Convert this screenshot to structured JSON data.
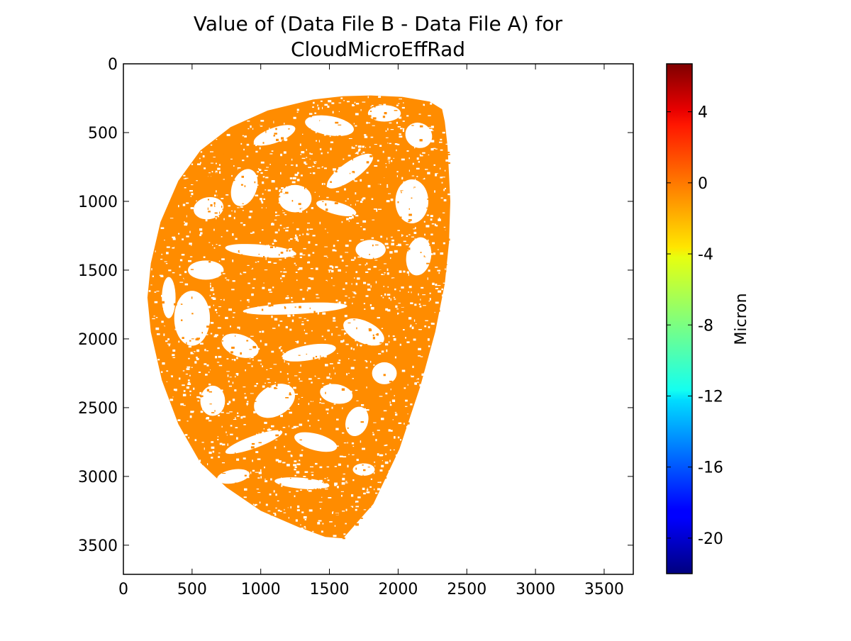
{
  "chart_data": {
    "type": "heatmap",
    "title_lines": [
      "Value of (Data File B - Data File A) for",
      "CloudMicroEffRad"
    ],
    "xlabel": "",
    "ylabel": "",
    "xlim": [
      0,
      3712
    ],
    "ylim": [
      3712,
      0
    ],
    "x_ticks": [
      0,
      500,
      1000,
      1500,
      2000,
      2500,
      3000,
      3500
    ],
    "y_ticks": [
      0,
      500,
      1000,
      1500,
      2000,
      2500,
      3000,
      3500
    ],
    "x_tick_labels": [
      "0",
      "500",
      "1000",
      "1500",
      "2000",
      "2500",
      "3000",
      "3500"
    ],
    "y_tick_labels": [
      "0",
      "500",
      "1000",
      "1500",
      "2000",
      "2500",
      "3000",
      "3500"
    ],
    "grid": false,
    "colormap": "jet",
    "colorbar": {
      "label": "Micron",
      "range": [
        -22,
        6.7
      ],
      "ticks": [
        4,
        0,
        -4,
        -8,
        -12,
        -16,
        -20
      ],
      "tick_labels": [
        "4",
        "0",
        "-4",
        "-8",
        "-12",
        "-16",
        "-20"
      ]
    },
    "field": {
      "description_value": 0,
      "fill_color": "#ff8c00",
      "no_data_color": "#ffffff",
      "disk_outline_data": [
        [
          1800,
          230
        ],
        [
          2030,
          240
        ],
        [
          2230,
          275
        ],
        [
          2320,
          330
        ],
        [
          2340,
          420
        ],
        [
          2360,
          600
        ],
        [
          2370,
          800
        ],
        [
          2380,
          1000
        ],
        [
          2370,
          1300
        ],
        [
          2340,
          1600
        ],
        [
          2270,
          1950
        ],
        [
          2160,
          2350
        ],
        [
          2010,
          2800
        ],
        [
          1820,
          3200
        ],
        [
          1600,
          3450
        ],
        [
          1470,
          3440
        ],
        [
          1280,
          3370
        ],
        [
          1000,
          3250
        ],
        [
          750,
          3080
        ],
        [
          560,
          2900
        ],
        [
          400,
          2620
        ],
        [
          280,
          2300
        ],
        [
          200,
          1950
        ],
        [
          175,
          1700
        ],
        [
          200,
          1450
        ],
        [
          270,
          1150
        ],
        [
          400,
          850
        ],
        [
          560,
          630
        ],
        [
          780,
          460
        ],
        [
          1050,
          340
        ],
        [
          1380,
          260
        ],
        [
          1600,
          235
        ]
      ],
      "cloud_holes_data": [
        [
          1100,
          520,
          160,
          55,
          -20
        ],
        [
          1500,
          450,
          180,
          70,
          10
        ],
        [
          1900,
          360,
          120,
          60,
          0
        ],
        [
          2150,
          520,
          100,
          90,
          30
        ],
        [
          1650,
          780,
          200,
          65,
          -35
        ],
        [
          1250,
          980,
          120,
          100,
          0
        ],
        [
          880,
          900,
          90,
          140,
          20
        ],
        [
          620,
          1050,
          110,
          80,
          -10
        ],
        [
          1550,
          1050,
          150,
          45,
          15
        ],
        [
          2100,
          1000,
          120,
          160,
          0
        ],
        [
          1000,
          1360,
          260,
          45,
          5
        ],
        [
          600,
          1500,
          130,
          70,
          0
        ],
        [
          1800,
          1350,
          110,
          70,
          0
        ],
        [
          2150,
          1400,
          90,
          140,
          10
        ],
        [
          1250,
          1780,
          380,
          40,
          -3
        ],
        [
          500,
          1850,
          130,
          200,
          0
        ],
        [
          850,
          2050,
          140,
          80,
          20
        ],
        [
          1350,
          2100,
          200,
          55,
          -10
        ],
        [
          1750,
          1950,
          160,
          80,
          25
        ],
        [
          650,
          2450,
          90,
          110,
          0
        ],
        [
          1100,
          2450,
          160,
          110,
          -30
        ],
        [
          1550,
          2400,
          120,
          70,
          10
        ],
        [
          1900,
          2250,
          90,
          80,
          0
        ],
        [
          950,
          2750,
          220,
          45,
          -20
        ],
        [
          1400,
          2750,
          160,
          60,
          15
        ],
        [
          800,
          3000,
          120,
          50,
          -10
        ],
        [
          1300,
          3050,
          200,
          40,
          5
        ],
        [
          1750,
          2950,
          80,
          45,
          0
        ],
        [
          330,
          1700,
          50,
          150,
          0
        ],
        [
          1700,
          2600,
          80,
          110,
          20
        ]
      ],
      "speckle_count": 2600
    }
  }
}
